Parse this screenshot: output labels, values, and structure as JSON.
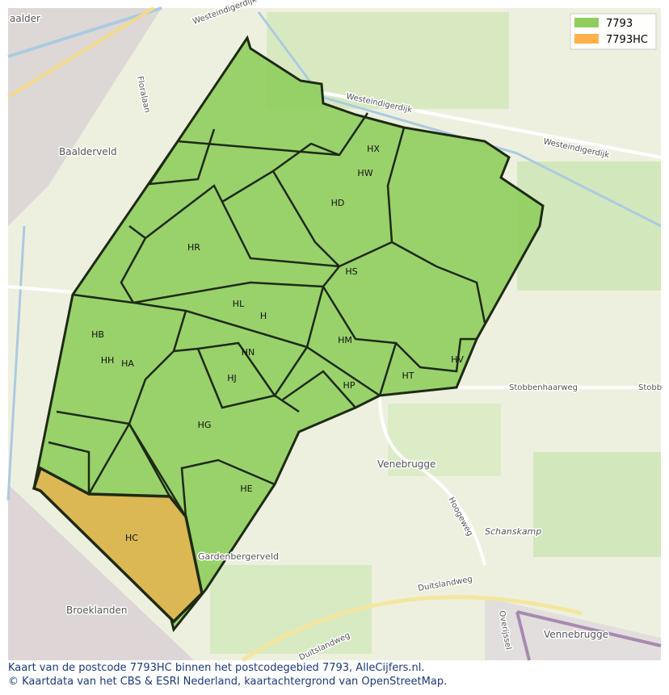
{
  "legend": [
    {
      "label": "7793",
      "color": "#8fce5e"
    },
    {
      "label": "7793HC",
      "color": "#ffb04c"
    }
  ],
  "regions": [
    "HX",
    "HW",
    "HD",
    "HR",
    "HS",
    "HL",
    "H",
    "HB",
    "HH",
    "HA",
    "HN",
    "HM",
    "HJ",
    "HP",
    "HT",
    "HV",
    "HG",
    "HE",
    "HC"
  ],
  "places": [
    "aalder",
    "Baalderveld",
    "Floralaan",
    "Westeindigerdijk",
    "Westeindigerdijk",
    "Westeindigerdijk",
    "Stobbenhaarweg",
    "Stobb",
    "Venebrugge",
    "Hoogeweg",
    "Schanskamp",
    "Duitslandweg",
    "Duitslandweg",
    "Broeklanden",
    "Vennebrugge",
    "Overijssel",
    "Gardenbergerveld"
  ],
  "footer": [
    "Kaart van de postcode 7793HC binnen het postcodegebied 7793, AlleCijfers.nl.",
    "© Kaartdata van het CBS & ESRI Nederland, kaartachtergrond van OpenStreetMap."
  ]
}
